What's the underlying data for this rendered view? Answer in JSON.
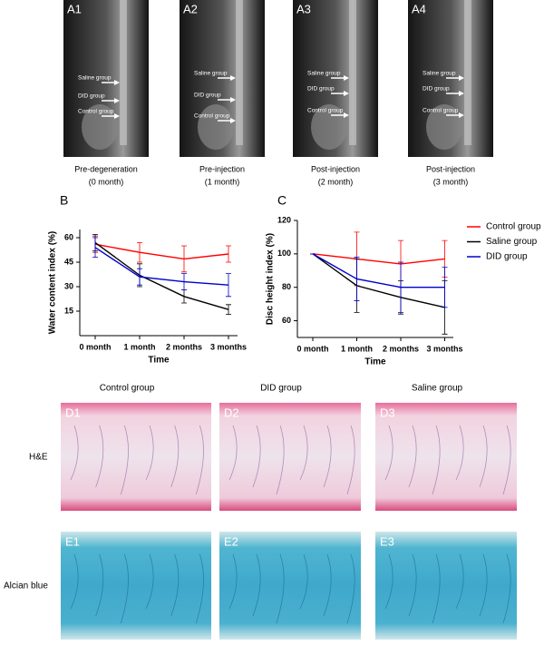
{
  "mri_panels": [
    {
      "label": "A1",
      "caption": "Pre-degeneration",
      "subcaption": "(0 month)",
      "arrows": [
        "Saline group",
        "DID group",
        "Control group"
      ]
    },
    {
      "label": "A2",
      "caption": "Pre-injection",
      "subcaption": "(1 month)",
      "arrows": [
        "Saline group",
        "DID group",
        "Control group"
      ]
    },
    {
      "label": "A3",
      "caption": "Post-injection",
      "subcaption": "(2 month)",
      "arrows": [
        "Saline group",
        "DID group",
        "Control group"
      ]
    },
    {
      "label": "A4",
      "caption": "Post-injection",
      "subcaption": "(3 month)",
      "arrows": [
        "Saline group",
        "DID group",
        "Control group"
      ]
    }
  ],
  "chart_data": [
    {
      "type": "line",
      "panel_label": "B",
      "ylabel": "Water content index (%)",
      "xlabel": "Time",
      "categories": [
        "0 month",
        "1 month",
        "2 months",
        "3 months"
      ],
      "ylim": [
        0,
        65
      ],
      "yticks": [
        15,
        30,
        45,
        60
      ],
      "series": [
        {
          "color": "#ff0000",
          "values": [
            56,
            51,
            47,
            50
          ],
          "errors": [
            5,
            6,
            8,
            5
          ]
        },
        {
          "color": "#000000",
          "values": [
            57,
            37,
            24,
            16
          ],
          "errors": [
            5,
            7,
            4,
            3
          ]
        },
        {
          "color": "#0000cc",
          "values": [
            54,
            36,
            33,
            31
          ],
          "errors": [
            6,
            5,
            5,
            7
          ]
        }
      ]
    },
    {
      "type": "line",
      "panel_label": "C",
      "ylabel": "Disc height index (%)",
      "xlabel": "Time",
      "categories": [
        "0 month",
        "1 month",
        "2 months",
        "3 months"
      ],
      "ylim": [
        50,
        120
      ],
      "yticks": [
        60,
        80,
        100,
        120
      ],
      "legend": "right",
      "series": [
        {
          "name": "Control group",
          "color": "#ff0000",
          "values": [
            100,
            97,
            94,
            97
          ],
          "errors": [
            0,
            16,
            14,
            11
          ]
        },
        {
          "name": "Saline group",
          "color": "#000000",
          "values": [
            100,
            81,
            74,
            68
          ],
          "errors": [
            0,
            16,
            10,
            16
          ]
        },
        {
          "name": "DID group",
          "color": "#0000cc",
          "values": [
            100,
            85,
            80,
            80
          ],
          "errors": [
            0,
            13,
            15,
            12
          ]
        }
      ]
    }
  ],
  "histology": {
    "columns": [
      "Control group",
      "DID group",
      "Saline group"
    ],
    "rows": [
      {
        "label": "H&E",
        "panels": [
          "D1",
          "D2",
          "D3"
        ]
      },
      {
        "label": "Alcian blue",
        "panels": [
          "E1",
          "E2",
          "E3"
        ]
      }
    ]
  }
}
